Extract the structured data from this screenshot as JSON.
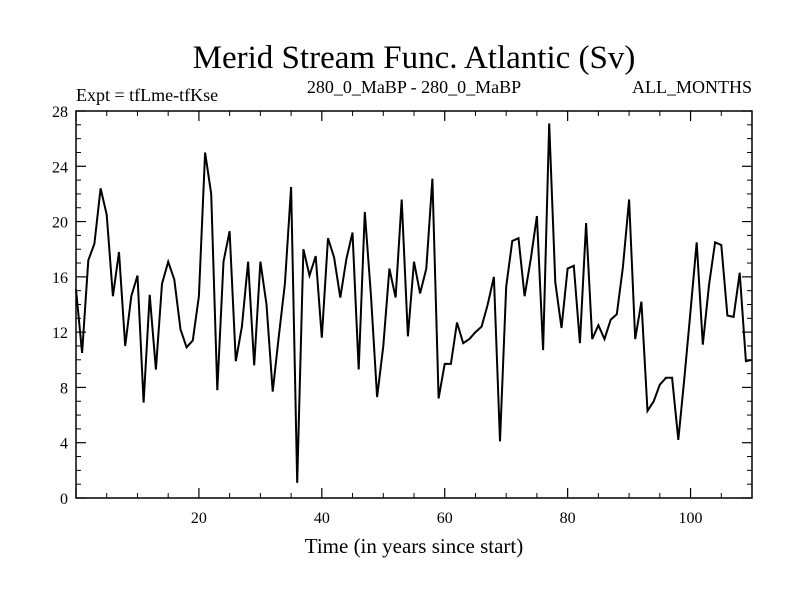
{
  "chart_data": {
    "type": "line",
    "title": "Merid Stream Func. Atlantic (Sv)",
    "subtitle_left": "Expt = tfLme-tfKse",
    "subtitle_center": "280_0_MaBP - 280_0_MaBP",
    "subtitle_right": "ALL_MONTHS",
    "xlabel": "Time (in years since start)",
    "ylabel": "",
    "xlim": [
      0,
      110
    ],
    "ylim": [
      0,
      28
    ],
    "x_ticks": [
      20,
      40,
      60,
      80,
      100
    ],
    "y_ticks": [
      0,
      4,
      8,
      12,
      16,
      20,
      24,
      28
    ],
    "grid": false,
    "series": [
      {
        "name": "Merid Stream Func. Atlantic",
        "color": "#000000",
        "x": [
          0,
          1,
          2,
          3,
          4,
          5,
          6,
          7,
          8,
          9,
          10,
          11,
          12,
          13,
          14,
          15,
          16,
          17,
          18,
          19,
          20,
          21,
          22,
          23,
          24,
          25,
          26,
          27,
          28,
          29,
          30,
          31,
          32,
          33,
          34,
          35,
          36,
          37,
          38,
          39,
          40,
          41,
          42,
          43,
          44,
          45,
          46,
          47,
          48,
          49,
          50,
          51,
          52,
          53,
          54,
          55,
          56,
          57,
          58,
          59,
          60,
          61,
          62,
          63,
          64,
          65,
          66,
          67,
          68,
          69,
          70,
          71,
          72,
          73,
          74,
          75,
          76,
          77,
          78,
          79,
          80,
          81,
          82,
          83,
          84,
          85,
          86,
          87,
          88,
          89,
          90,
          91,
          92,
          93,
          94,
          95,
          96,
          97,
          98,
          99,
          100,
          101,
          102,
          103,
          104,
          105,
          106,
          107,
          108,
          109,
          110
        ],
        "values": [
          15.1,
          10.5,
          17.2,
          18.4,
          22.4,
          20.5,
          14.6,
          17.8,
          11.0,
          14.6,
          16.1,
          6.9,
          14.7,
          9.3,
          15.5,
          17.1,
          15.8,
          12.2,
          10.9,
          11.4,
          14.6,
          25.0,
          22.0,
          7.8,
          17.1,
          19.3,
          9.9,
          12.4,
          17.1,
          9.6,
          17.1,
          14.0,
          7.7,
          11.7,
          15.5,
          22.5,
          1.1,
          18.0,
          16.1,
          17.5,
          11.6,
          18.8,
          17.4,
          14.5,
          17.3,
          19.2,
          9.3,
          20.7,
          14.6,
          7.3,
          11.0,
          16.6,
          14.5,
          21.6,
          11.7,
          17.1,
          14.8,
          16.6,
          23.1,
          7.2,
          9.7,
          9.7,
          12.7,
          11.2,
          11.5,
          12.0,
          12.4,
          14.0,
          16.0,
          4.1,
          15.3,
          18.6,
          18.8,
          14.6,
          17.3,
          20.4,
          10.7,
          27.1,
          15.6,
          12.3,
          16.6,
          16.8,
          11.2,
          19.9,
          11.5,
          12.5,
          11.5,
          12.9,
          13.3,
          16.7,
          21.6,
          11.5,
          14.2,
          6.3,
          7.0,
          8.2,
          8.7,
          8.7,
          4.2,
          8.7,
          13.5,
          18.5,
          11.1,
          15.4,
          18.5,
          18.3,
          13.2,
          13.1,
          16.3,
          9.9,
          10.0
        ]
      }
    ]
  }
}
